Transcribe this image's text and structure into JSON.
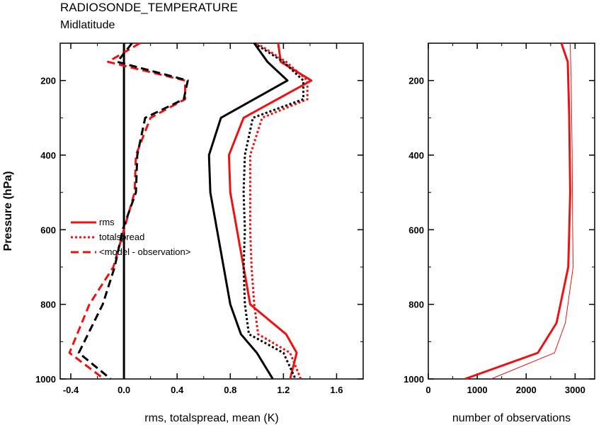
{
  "title": "RADIOSONDE_TEMPERATURE",
  "subtitle": "Midlatitude",
  "colors": {
    "experiment": "#ee1111",
    "control": "#000000"
  },
  "chart_data": [
    {
      "type": "line",
      "id": "left",
      "xlabel": "rms, totalspread, mean (K)",
      "ylabel": "Pressure (hPa)",
      "xlim": [
        -0.48,
        1.8
      ],
      "ylim": [
        100,
        1000
      ],
      "y_inverted": true,
      "xticks": [
        -0.4,
        0.0,
        0.4,
        0.8,
        1.2,
        1.6
      ],
      "xtick_labels": [
        "-0.4",
        "0.0",
        "0.4",
        "0.8",
        "1.2",
        "1.6"
      ],
      "yticks": [
        200,
        400,
        600,
        800,
        1000
      ],
      "ytick_labels": [
        "200",
        "400",
        "600",
        "800",
        "1000"
      ],
      "legend": {
        "placement": "middle-left",
        "entries": [
          {
            "label": "rms",
            "style": "solid"
          },
          {
            "label": "totalspread",
            "style": "dotted"
          },
          {
            "label": "<model - observation>",
            "style": "dashed"
          }
        ]
      },
      "series": [
        {
          "kind": "rms",
          "color": "#ee1111",
          "style": "solid",
          "width": 3,
          "points": [
            [
              1.16,
              100
            ],
            [
              1.18,
              150
            ],
            [
              1.41,
              200
            ],
            [
              0.9,
              300
            ],
            [
              0.79,
              400
            ],
            [
              0.8,
              500
            ],
            [
              0.85,
              600
            ],
            [
              0.9,
              700
            ],
            [
              0.95,
              800
            ],
            [
              1.22,
              880
            ],
            [
              1.3,
              930
            ],
            [
              1.25,
              1000
            ]
          ]
        },
        {
          "kind": "rms",
          "color": "#000000",
          "style": "solid",
          "width": 3,
          "points": [
            [
              0.98,
              100
            ],
            [
              1.08,
              150
            ],
            [
              1.23,
              200
            ],
            [
              0.73,
              300
            ],
            [
              0.64,
              400
            ],
            [
              0.65,
              500
            ],
            [
              0.7,
              600
            ],
            [
              0.75,
              700
            ],
            [
              0.8,
              800
            ],
            [
              0.88,
              880
            ],
            [
              1.0,
              930
            ],
            [
              1.12,
              1000
            ]
          ]
        },
        {
          "kind": "totalspread",
          "color": "#ee1111",
          "style": "dotted",
          "width": 3,
          "points": [
            [
              1.0,
              100
            ],
            [
              1.22,
              150
            ],
            [
              1.38,
              200
            ],
            [
              1.38,
              250
            ],
            [
              1.04,
              300
            ],
            [
              0.95,
              400
            ],
            [
              0.95,
              500
            ],
            [
              0.95,
              600
            ],
            [
              0.96,
              700
            ],
            [
              0.98,
              800
            ],
            [
              1.01,
              880
            ],
            [
              1.25,
              930
            ],
            [
              1.33,
              1000
            ]
          ]
        },
        {
          "kind": "totalspread",
          "color": "#000000",
          "style": "dotted",
          "width": 3,
          "points": [
            [
              0.98,
              100
            ],
            [
              1.2,
              150
            ],
            [
              1.35,
              200
            ],
            [
              1.35,
              250
            ],
            [
              0.97,
              300
            ],
            [
              0.91,
              400
            ],
            [
              0.9,
              500
            ],
            [
              0.91,
              600
            ],
            [
              0.9,
              700
            ],
            [
              0.91,
              800
            ],
            [
              0.94,
              880
            ],
            [
              1.2,
              930
            ],
            [
              1.29,
              1000
            ]
          ]
        },
        {
          "kind": "mean",
          "color": "#ee1111",
          "style": "dashed",
          "width": 3,
          "points": [
            [
              0.12,
              100
            ],
            [
              -0.12,
              150
            ],
            [
              0.46,
              200
            ],
            [
              0.46,
              250
            ],
            [
              0.2,
              300
            ],
            [
              0.09,
              400
            ],
            [
              0.08,
              500
            ],
            [
              0.0,
              600
            ],
            [
              -0.08,
              700
            ],
            [
              -0.26,
              800
            ],
            [
              -0.41,
              930
            ],
            [
              -0.15,
              1000
            ]
          ]
        },
        {
          "kind": "mean",
          "color": "#000000",
          "style": "dashed",
          "width": 3,
          "points": [
            [
              0.06,
              100
            ],
            [
              -0.05,
              150
            ],
            [
              0.48,
              200
            ],
            [
              0.45,
              250
            ],
            [
              0.16,
              300
            ],
            [
              0.1,
              400
            ],
            [
              0.09,
              500
            ],
            [
              -0.01,
              600
            ],
            [
              -0.07,
              700
            ],
            [
              -0.16,
              800
            ],
            [
              -0.34,
              930
            ],
            [
              -0.1,
              1000
            ]
          ]
        }
      ],
      "vline": {
        "x": 0.0,
        "color": "#000000"
      }
    },
    {
      "type": "line",
      "id": "right",
      "xlabel": "number of observations",
      "xlim": [
        0,
        3400
      ],
      "ylim": [
        100,
        1000
      ],
      "y_inverted": true,
      "xticks": [
        0,
        1000,
        2000,
        3000
      ],
      "xtick_labels": [
        "0",
        "1000",
        "2000",
        "3000"
      ],
      "yticks": [
        200,
        400,
        600,
        800,
        1000
      ],
      "ytick_labels": [
        "200",
        "400",
        "600",
        "800",
        "1000"
      ],
      "series": [
        {
          "color": "#ee1111",
          "style": "solid",
          "width": 3,
          "points": [
            [
              2720,
              100
            ],
            [
              2850,
              150
            ],
            [
              2880,
              300
            ],
            [
              2900,
              500
            ],
            [
              2880,
              600
            ],
            [
              2860,
              700
            ],
            [
              2620,
              850
            ],
            [
              2240,
              930
            ],
            [
              750,
              1000
            ]
          ]
        },
        {
          "color": "#ee1111",
          "style": "solid",
          "width": 1,
          "points": [
            [
              2900,
              100
            ],
            [
              2920,
              200
            ],
            [
              2940,
              400
            ],
            [
              2950,
              600
            ],
            [
              2960,
              700
            ],
            [
              2800,
              850
            ],
            [
              2580,
              930
            ],
            [
              1280,
              1000
            ]
          ]
        }
      ]
    }
  ]
}
